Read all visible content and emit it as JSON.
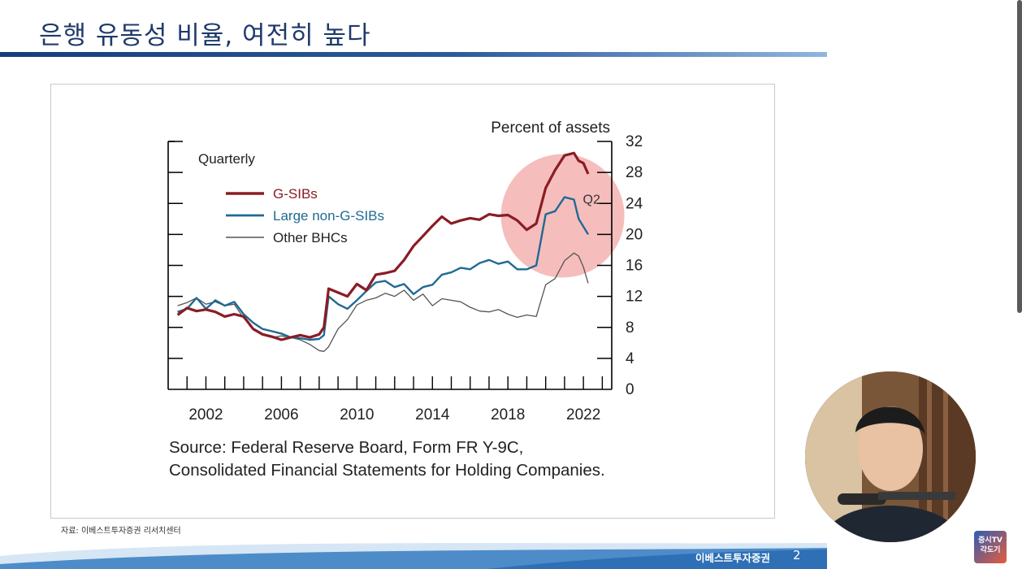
{
  "slide": {
    "title": "은행 유동성 비율, 여전히 높다",
    "footnote": "자료: 이베스트투자증권  리서치센터",
    "footer_label": "이베스트투자증권",
    "page_number": "2",
    "logo_text": "증시TV 각도기"
  },
  "chart_data": {
    "type": "line",
    "title": "",
    "frequency_label": "Quarterly",
    "ylabel": "Percent of assets",
    "ylim": [
      0,
      32
    ],
    "yticks": [
      "0",
      "4",
      "8",
      "12",
      "16",
      "20",
      "24",
      "28",
      "32"
    ],
    "x_ticks": [
      "2002",
      "2006",
      "2010",
      "2014",
      "2018",
      "2022"
    ],
    "xlim": [
      2000,
      2023.5
    ],
    "annotation": "Q2",
    "source": "Source: Federal Reserve Board, Form FR Y-9C, Consolidated Financial Statements for Holding Companies.",
    "colors": {
      "g_sibs": "#8b1c24",
      "large": "#1f6a94",
      "other": "#555555",
      "highlight": "#f3a7a7"
    },
    "series": [
      {
        "name": "G-SIBs",
        "x": [
          2000.5,
          2001,
          2001.5,
          2002,
          2002.5,
          2003,
          2003.5,
          2004,
          2004.5,
          2005,
          2005.5,
          2006,
          2006.5,
          2007,
          2007.5,
          2008,
          2008.25,
          2008.5,
          2009,
          2009.5,
          2010,
          2010.5,
          2011,
          2011.5,
          2012,
          2012.5,
          2013,
          2013.5,
          2014,
          2014.5,
          2015,
          2015.5,
          2016,
          2016.5,
          2017,
          2017.5,
          2018,
          2018.5,
          2019,
          2019.5,
          2020,
          2020.5,
          2021,
          2021.5,
          2021.75,
          2022,
          2022.25
        ],
        "values": [
          9.6,
          10.5,
          10.1,
          10.3,
          10.0,
          9.4,
          9.7,
          9.4,
          7.8,
          7.1,
          6.8,
          6.4,
          6.7,
          7.0,
          6.7,
          7.1,
          8.0,
          13.0,
          12.5,
          12.0,
          13.6,
          12.8,
          14.8,
          15.0,
          15.3,
          16.7,
          18.5,
          19.8,
          21.1,
          22.3,
          21.4,
          21.8,
          22.1,
          21.9,
          22.6,
          22.4,
          22.5,
          21.8,
          20.6,
          21.4,
          26.0,
          28.3,
          30.2,
          30.5,
          29.5,
          29.2,
          27.8
        ]
      },
      {
        "name": "Large non-G-SIBs",
        "x": [
          2000.5,
          2001,
          2001.5,
          2002,
          2002.5,
          2003,
          2003.5,
          2004,
          2004.5,
          2005,
          2005.5,
          2006,
          2006.5,
          2007,
          2007.5,
          2008,
          2008.25,
          2008.5,
          2009,
          2009.5,
          2010,
          2010.5,
          2011,
          2011.5,
          2012,
          2012.5,
          2013,
          2013.5,
          2014,
          2014.5,
          2015,
          2015.5,
          2016,
          2016.5,
          2017,
          2017.5,
          2018,
          2018.5,
          2019,
          2019.5,
          2020,
          2020.5,
          2021,
          2021.5,
          2021.75,
          2022,
          2022.25
        ],
        "values": [
          10.0,
          10.4,
          11.8,
          10.4,
          11.5,
          10.8,
          11.3,
          9.7,
          8.6,
          7.8,
          7.5,
          7.2,
          6.7,
          6.6,
          6.4,
          6.5,
          7.0,
          12.0,
          11.0,
          10.4,
          11.5,
          12.7,
          13.8,
          14.0,
          13.2,
          13.6,
          12.3,
          13.2,
          13.5,
          14.8,
          15.1,
          15.7,
          15.5,
          16.3,
          16.7,
          16.2,
          16.5,
          15.5,
          15.5,
          16.0,
          22.6,
          23.0,
          24.8,
          24.5,
          22.0,
          21.0,
          20.0
        ]
      },
      {
        "name": "Other BHCs",
        "x": [
          2000.5,
          2001,
          2001.5,
          2002,
          2002.5,
          2003,
          2003.5,
          2004,
          2004.5,
          2005,
          2005.5,
          2006,
          2006.5,
          2007,
          2007.5,
          2008,
          2008.25,
          2008.5,
          2009,
          2009.5,
          2010,
          2010.5,
          2011,
          2011.5,
          2012,
          2012.5,
          2013,
          2013.5,
          2014,
          2014.5,
          2015,
          2015.5,
          2016,
          2016.5,
          2017,
          2017.5,
          2018,
          2018.5,
          2019,
          2019.5,
          2020,
          2020.5,
          2021,
          2021.5,
          2021.75,
          2022,
          2022.25
        ],
        "values": [
          10.8,
          11.2,
          11.8,
          11.0,
          11.3,
          10.8,
          11.0,
          9.2,
          7.9,
          7.0,
          6.7,
          6.9,
          6.7,
          6.4,
          5.8,
          5.0,
          4.9,
          5.5,
          7.8,
          9.0,
          10.9,
          11.5,
          11.8,
          12.4,
          12.0,
          12.8,
          11.5,
          12.3,
          10.8,
          11.7,
          11.5,
          11.3,
          10.6,
          10.1,
          10.0,
          10.3,
          9.7,
          9.3,
          9.6,
          9.4,
          13.5,
          14.3,
          16.6,
          17.6,
          17.2,
          15.8,
          13.7
        ]
      }
    ]
  }
}
